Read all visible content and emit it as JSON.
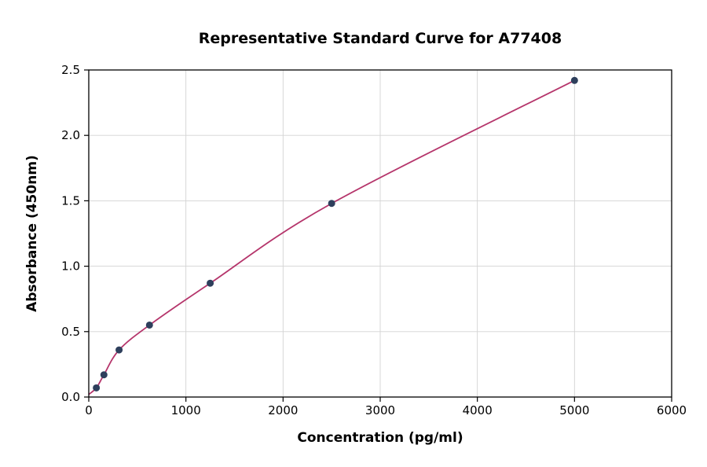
{
  "figure": {
    "background": "#ffffff"
  },
  "chart_data": {
    "type": "scatter",
    "title": "Representative Standard Curve for A77408",
    "xlabel": "Concentration (pg/ml)",
    "ylabel": "Absorbance (450nm)",
    "xlim": [
      0,
      6000
    ],
    "ylim": [
      0,
      2.5
    ],
    "x_ticks": [
      0,
      1000,
      2000,
      3000,
      4000,
      5000,
      6000
    ],
    "x_tick_labels": [
      "0",
      "1000",
      "2000",
      "3000",
      "4000",
      "5000",
      "6000"
    ],
    "y_ticks": [
      0,
      0.5,
      1,
      1.5,
      2,
      2.5
    ],
    "y_tick_labels": [
      "0.0",
      "0.5",
      "1.0",
      "1.5",
      "2.0",
      "2.5"
    ],
    "grid": true,
    "legend_position": "none",
    "curve_start": {
      "x": 0,
      "y": 0.02
    },
    "points": [
      {
        "x": 78,
        "y": 0.07
      },
      {
        "x": 156,
        "y": 0.17
      },
      {
        "x": 312,
        "y": 0.36
      },
      {
        "x": 625,
        "y": 0.55
      },
      {
        "x": 1250,
        "y": 0.87
      },
      {
        "x": 2500,
        "y": 1.48
      },
      {
        "x": 5000,
        "y": 2.42
      }
    ],
    "colors": {
      "curve": "#b5356b",
      "points": "#2e3f5c",
      "grid": "#d3d3d3",
      "axes": "#000000"
    }
  }
}
